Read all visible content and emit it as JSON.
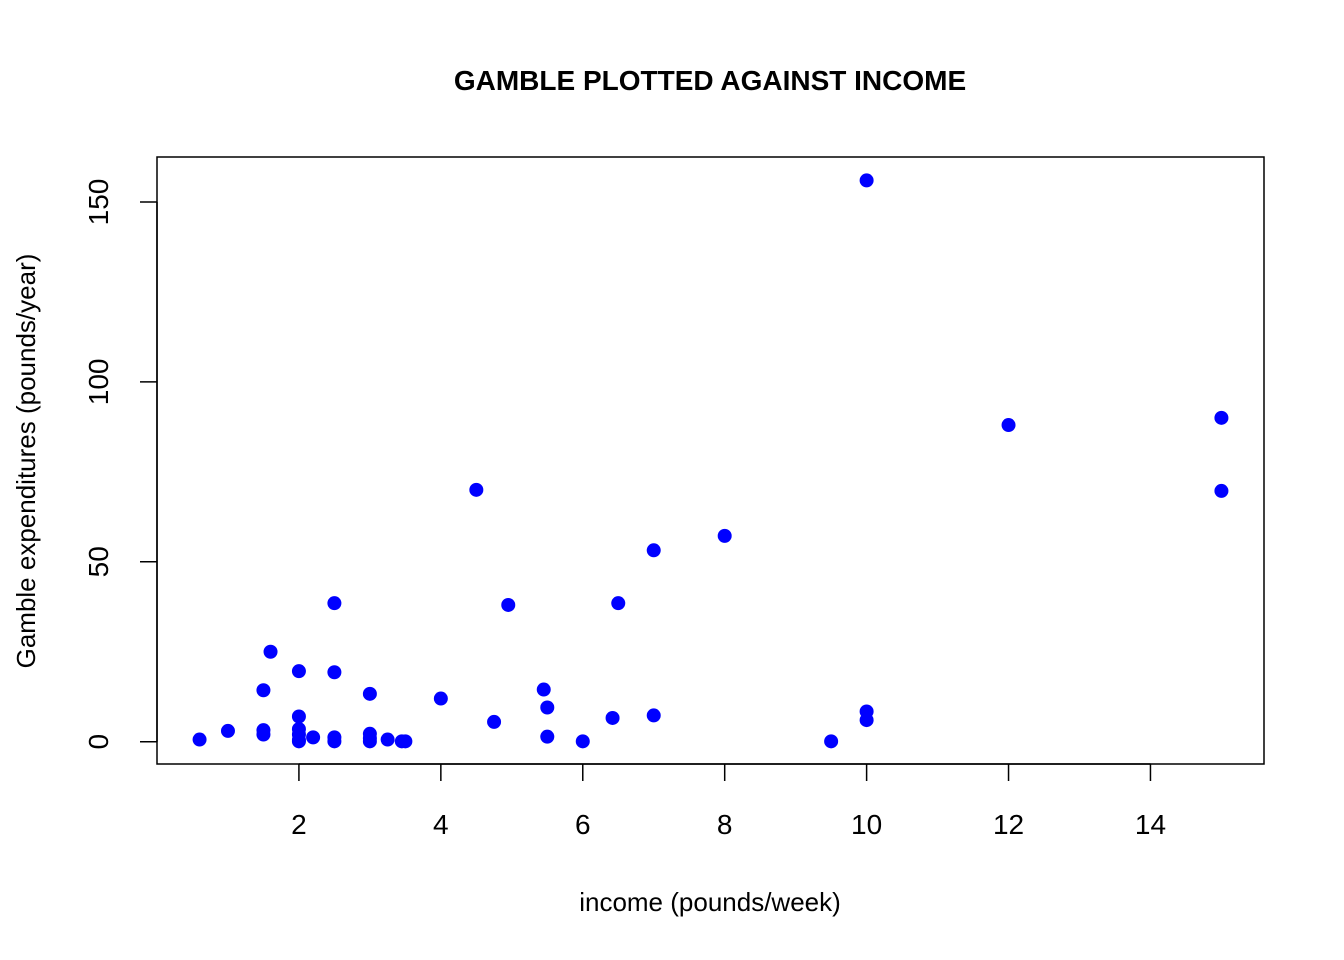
{
  "chart_data": {
    "type": "scatter",
    "title": "GAMBLE PLOTTED AGAINST INCOME",
    "xlabel": "income (pounds/week)",
    "ylabel": "Gamble expenditures (pounds/year)",
    "xlim": [
      0.0,
      15.6
    ],
    "ylim": [
      -6.2,
      162.5
    ],
    "xticks": [
      2,
      4,
      6,
      8,
      10,
      12,
      14
    ],
    "yticks": [
      0,
      50,
      100,
      150
    ],
    "grid": false,
    "legend": "none",
    "point_color": "#0000ff",
    "series": [
      {
        "x": [
          0.6,
          1.0,
          1.5,
          1.5,
          1.5,
          1.6,
          2.0,
          2.0,
          2.0,
          2.0,
          2.0,
          2.0,
          2.2,
          2.5,
          2.5,
          2.5,
          2.5,
          3.0,
          3.0,
          3.0,
          3.0,
          3.25,
          3.45,
          3.5,
          4.0,
          4.5,
          4.75,
          4.95,
          5.45,
          5.5,
          5.5,
          6.0,
          6.42,
          6.5,
          7.0,
          7.0,
          8.0,
          9.5,
          10.0,
          10.0,
          10.0,
          12.0,
          15.0,
          15.0
        ],
        "y": [
          0.6,
          3.0,
          14.3,
          3.2,
          2.0,
          25.0,
          19.6,
          7.0,
          3.5,
          2.0,
          0.5,
          0.1,
          1.2,
          38.5,
          19.3,
          1.2,
          0.1,
          13.3,
          2.2,
          1.0,
          0.1,
          0.6,
          0.1,
          0.1,
          12.0,
          70.0,
          5.5,
          38.0,
          14.5,
          9.5,
          1.4,
          0.1,
          6.6,
          38.5,
          53.2,
          7.3,
          57.2,
          0.1,
          156.0,
          8.4,
          6.0,
          88.0,
          90.0,
          69.7
        ]
      }
    ]
  }
}
